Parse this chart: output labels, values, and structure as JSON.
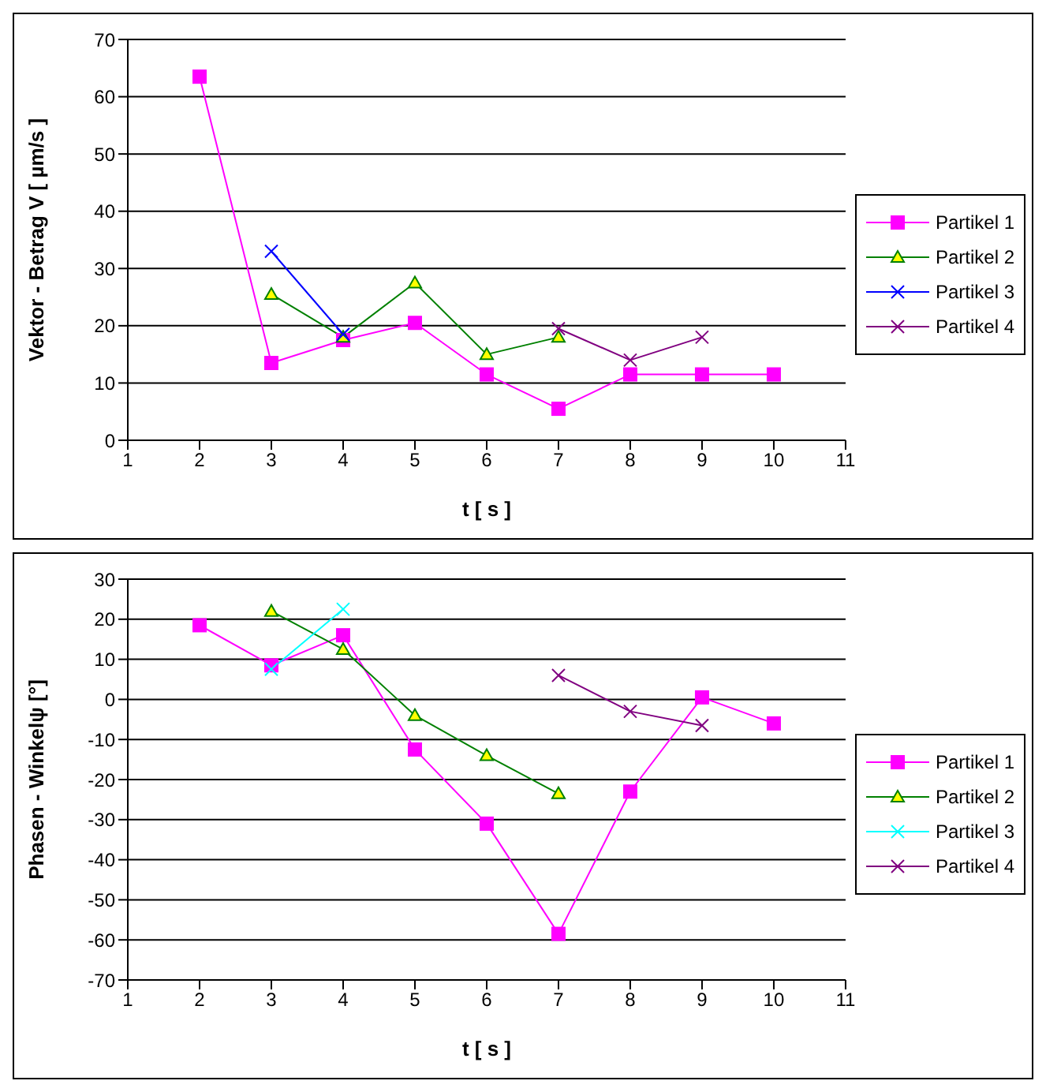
{
  "chart_data": [
    {
      "type": "line",
      "ylabel": "Vektor - Betrag V   [ µm/s ]",
      "xlabel": "t    [ s ]",
      "categories": [
        "1",
        "2",
        "3",
        "4",
        "5",
        "6",
        "7",
        "8",
        "9",
        "10",
        "11"
      ],
      "series": [
        {
          "name": "Partikel 1",
          "color": "#ff00ff",
          "marker": "square",
          "values": [
            null,
            63.5,
            13.5,
            17.5,
            20.5,
            11.5,
            5.5,
            11.5,
            11.5,
            11.5,
            null
          ]
        },
        {
          "name": "Partikel 2",
          "color": "#008000",
          "marker": "triangle",
          "values": [
            null,
            null,
            25.5,
            18,
            27.5,
            15,
            18,
            null,
            null,
            null,
            null
          ]
        },
        {
          "name": "Partikel 3",
          "color": "#0000ff",
          "marker": "cross",
          "values": [
            null,
            null,
            33,
            18.5,
            null,
            null,
            null,
            null,
            null,
            null,
            null
          ]
        },
        {
          "name": "Partikel 4",
          "color": "#800080",
          "marker": "cross",
          "values": [
            null,
            null,
            null,
            null,
            null,
            null,
            19.5,
            14,
            18,
            null,
            null
          ]
        }
      ],
      "ylim": [
        0,
        70
      ],
      "yticks": [
        0,
        10,
        20,
        30,
        40,
        50,
        60,
        70
      ],
      "grid": "y",
      "legend": "right"
    },
    {
      "type": "line",
      "ylabel": "Phasen - Winkelψ    [°]",
      "xlabel": "t   [ s ]",
      "categories": [
        "1",
        "2",
        "3",
        "4",
        "5",
        "6",
        "7",
        "8",
        "9",
        "10",
        "11"
      ],
      "series": [
        {
          "name": "Partikel 1",
          "color": "#ff00ff",
          "marker": "square",
          "values": [
            null,
            18.5,
            8.5,
            16,
            -12.5,
            -31,
            -58.5,
            -23,
            0.5,
            -6,
            null
          ]
        },
        {
          "name": "Partikel 2",
          "color": "#008000",
          "marker": "triangle",
          "values": [
            null,
            null,
            22,
            12.5,
            -4,
            -14,
            -23.5,
            null,
            null,
            null,
            null
          ]
        },
        {
          "name": "Partikel 3",
          "color": "#00ffff",
          "marker": "cross",
          "values": [
            null,
            null,
            7.5,
            22.5,
            null,
            null,
            null,
            null,
            null,
            null,
            null
          ]
        },
        {
          "name": "Partikel 4",
          "color": "#800080",
          "marker": "cross",
          "values": [
            null,
            null,
            null,
            null,
            null,
            null,
            6,
            -3,
            -6.5,
            null,
            null
          ]
        }
      ],
      "ylim": [
        -70,
        30
      ],
      "yticks": [
        -70,
        -60,
        -50,
        -40,
        -30,
        -20,
        -10,
        0,
        10,
        20,
        30
      ],
      "grid": "y",
      "legend": "right"
    }
  ]
}
